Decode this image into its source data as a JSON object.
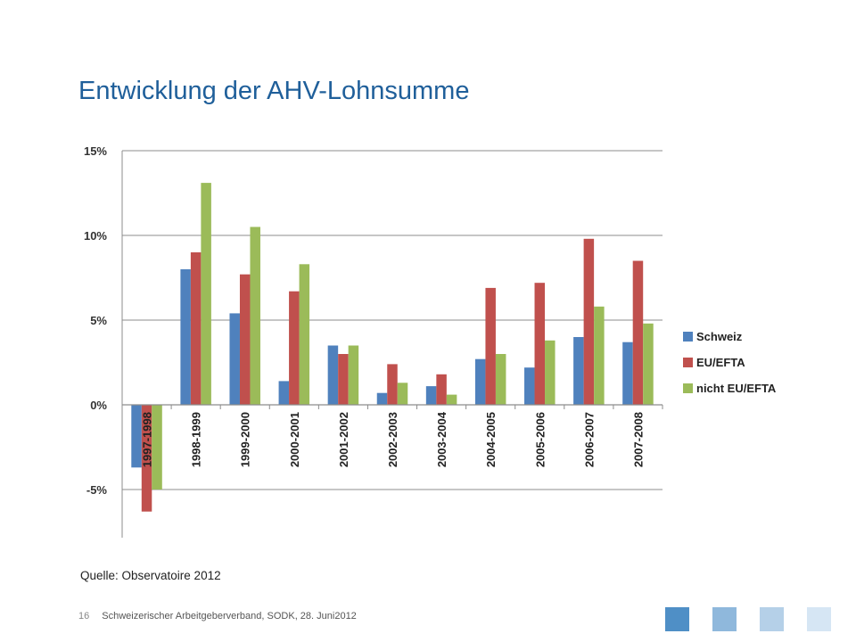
{
  "slide": {
    "title": "Entwicklung der AHV-Lohnsumme",
    "source": "Quelle: Observatoire 2012",
    "footer_text": "Schweizerischer Arbeitgeberverband, SODK, 28. Juni2012",
    "page_number": "16"
  },
  "colors": {
    "title": "#1f5f9a",
    "squares": [
      "#4f8fc6",
      "#8fb8dc",
      "#b5d0e8",
      "#d6e6f4"
    ]
  },
  "chart_data": {
    "type": "bar",
    "categories": [
      "1997-1998",
      "1998-1999",
      "1999-2000",
      "2000-2001",
      "2001-2002",
      "2002-2003",
      "2003-2004",
      "2004-2005",
      "2005-2006",
      "2006-2007",
      "2007-2008"
    ],
    "series": [
      {
        "name": "Schweiz",
        "color": "#4f81bd",
        "values": [
          -3.7,
          8.0,
          5.4,
          1.4,
          3.5,
          0.7,
          1.1,
          2.7,
          2.2,
          4.0,
          3.7
        ]
      },
      {
        "name": "EU/EFTA",
        "color": "#c0504d",
        "values": [
          -6.3,
          9.0,
          7.7,
          6.7,
          3.0,
          2.4,
          1.8,
          6.9,
          7.2,
          9.8,
          8.5
        ]
      },
      {
        "name": "nicht EU/EFTA",
        "color": "#9bbb59",
        "values": [
          -5.0,
          13.1,
          10.5,
          8.3,
          3.5,
          1.3,
          0.6,
          3.0,
          3.8,
          5.8,
          4.8
        ]
      }
    ],
    "ylim": [
      -8,
      15
    ],
    "yticks": [
      15,
      10,
      5,
      0,
      -5
    ],
    "ytick_labels": [
      "15%",
      "10%",
      "5%",
      "0%",
      "-5%"
    ],
    "grid": true,
    "legend_position": "right"
  }
}
